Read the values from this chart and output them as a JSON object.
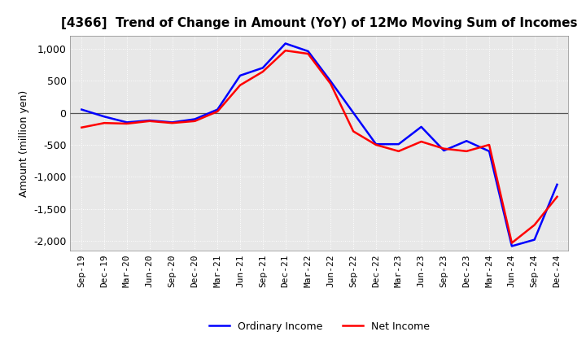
{
  "title": "[4366]  Trend of Change in Amount (YoY) of 12Mo Moving Sum of Incomes",
  "ylabel": "Amount (million yen)",
  "x_labels": [
    "Sep-19",
    "Dec-19",
    "Mar-20",
    "Jun-20",
    "Sep-20",
    "Dec-20",
    "Mar-21",
    "Jun-21",
    "Sep-21",
    "Dec-21",
    "Mar-22",
    "Jun-22",
    "Sep-22",
    "Dec-22",
    "Mar-23",
    "Jun-23",
    "Sep-23",
    "Dec-23",
    "Mar-24",
    "Jun-24",
    "Sep-24",
    "Dec-24"
  ],
  "ordinary_income": [
    50,
    -60,
    -150,
    -120,
    -150,
    -100,
    50,
    580,
    700,
    1080,
    960,
    490,
    0,
    -490,
    -490,
    -220,
    -590,
    -440,
    -600,
    -2080,
    -1980,
    -1120
  ],
  "net_income": [
    -230,
    -160,
    -170,
    -130,
    -160,
    -130,
    20,
    430,
    640,
    970,
    920,
    450,
    -290,
    -500,
    -600,
    -450,
    -560,
    -600,
    -500,
    -2030,
    -1750,
    -1310
  ],
  "ordinary_income_color": "#0000FF",
  "net_income_color": "#FF0000",
  "ylim": [
    -2150,
    1200
  ],
  "yticks": [
    1000,
    500,
    0,
    -500,
    -1000,
    -1500,
    -2000
  ],
  "legend_labels": [
    "Ordinary Income",
    "Net Income"
  ],
  "plot_bg_color": "#E8E8E8",
  "fig_bg_color": "#FFFFFF",
  "grid_color": "#FFFFFF",
  "zero_line_color": "#555555",
  "line_width": 1.8,
  "title_fontsize": 11,
  "axis_fontsize": 9,
  "tick_fontsize": 8
}
